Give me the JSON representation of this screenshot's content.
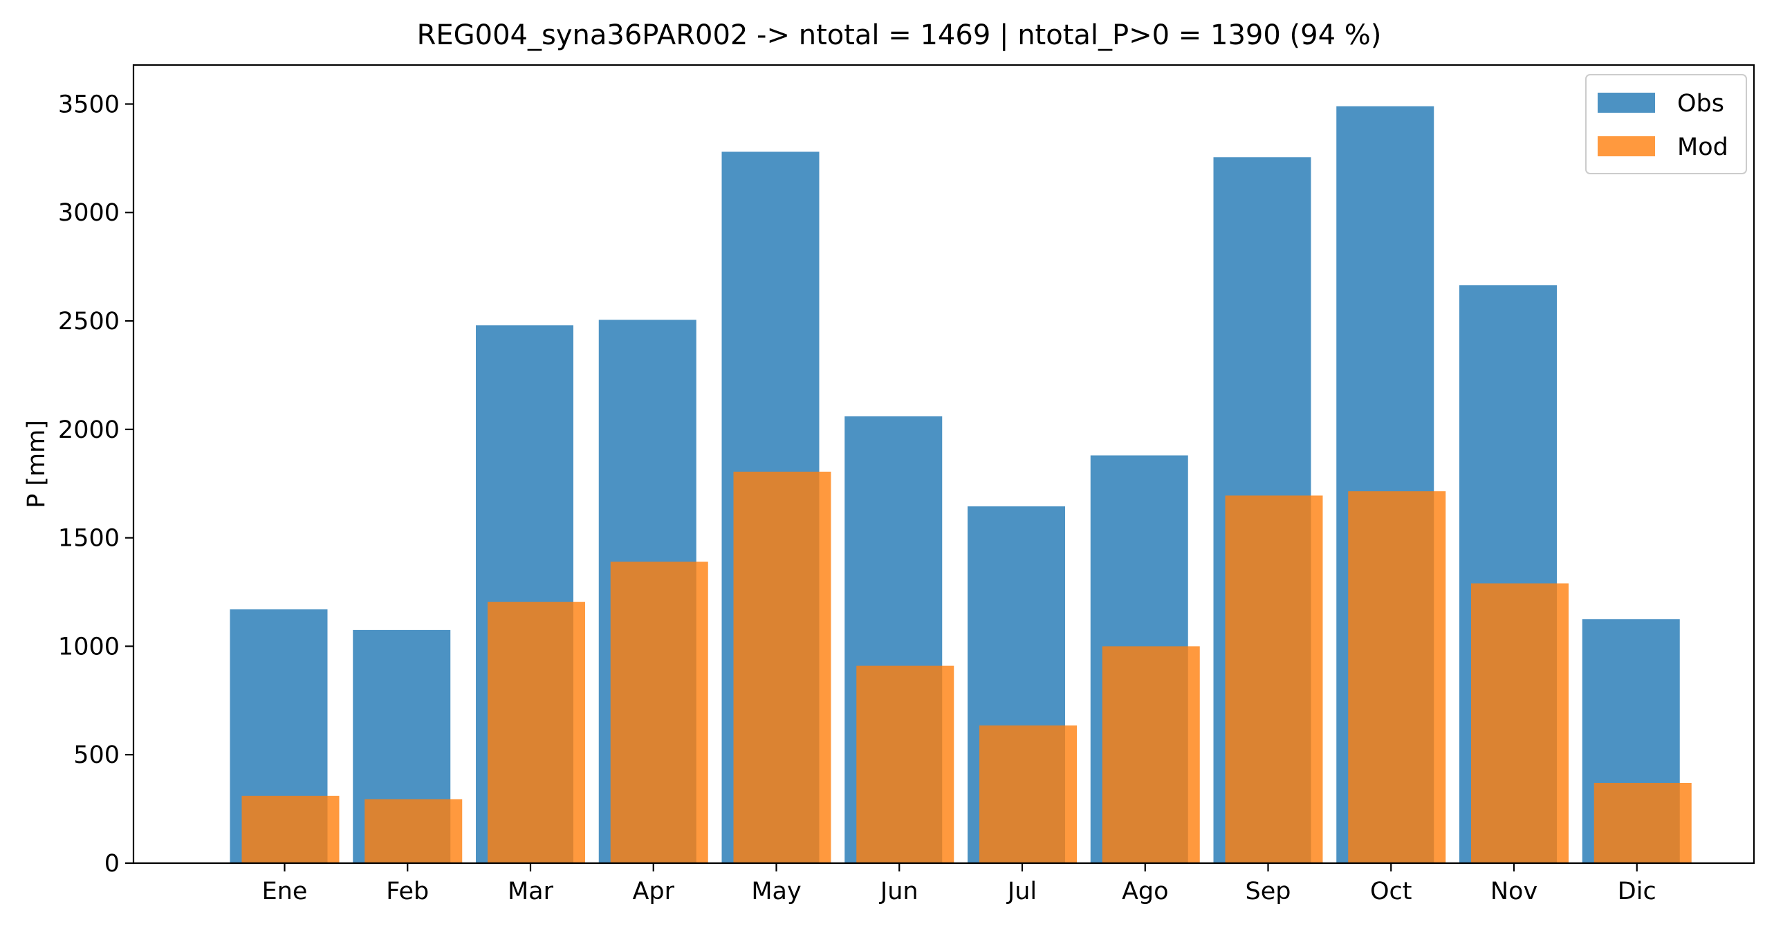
{
  "chart_data": {
    "type": "bar",
    "title": "REG004_syna36PAR002 -> ntotal = 1469 | ntotal_P>0 = 1390 (94 %)",
    "xlabel": "",
    "ylabel": "P [mm]",
    "categories": [
      "Ene",
      "Feb",
      "Mar",
      "Apr",
      "May",
      "Jun",
      "Jul",
      "Ago",
      "Sep",
      "Oct",
      "Nov",
      "Dic"
    ],
    "series": [
      {
        "name": "Obs",
        "color": "#1f77b4",
        "values": [
          1170,
          1075,
          2480,
          2505,
          3280,
          2060,
          1645,
          1880,
          3255,
          3490,
          2665,
          1125
        ]
      },
      {
        "name": "Mod",
        "color": "#ff7f0e",
        "values": [
          310,
          295,
          1205,
          1390,
          1805,
          910,
          635,
          1000,
          1695,
          1715,
          1290,
          370
        ]
      }
    ],
    "ylim": [
      0,
      3680
    ],
    "yticks": [
      0,
      500,
      1000,
      1500,
      2000,
      2500,
      3000,
      3500
    ],
    "grid": false,
    "legend_position": "upper right",
    "bar_opacity": 0.8
  }
}
